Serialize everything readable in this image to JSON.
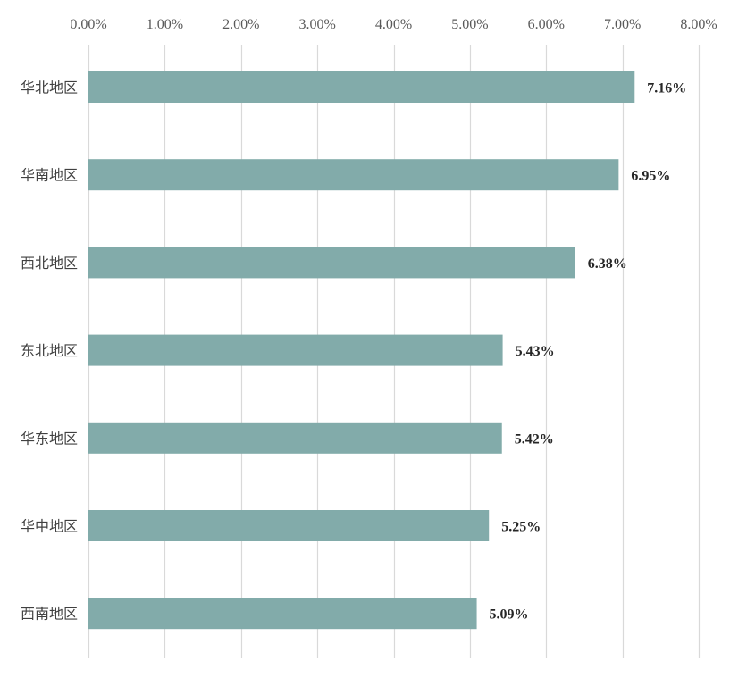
{
  "chart_data": {
    "type": "bar",
    "orientation": "horizontal",
    "title": "",
    "xlabel": "",
    "ylabel": "",
    "categories": [
      "华北地区",
      "华南地区",
      "西北地区",
      "东北地区",
      "华东地区",
      "华中地区",
      "西南地区"
    ],
    "values": [
      7.16,
      6.95,
      6.38,
      5.43,
      5.42,
      5.25,
      5.09
    ],
    "value_labels": [
      "7.16%",
      "6.95%",
      "6.38%",
      "5.43%",
      "5.42%",
      "5.25%",
      "5.09%"
    ],
    "xlim": [
      0,
      8
    ],
    "ticks": [
      0,
      1,
      2,
      3,
      4,
      5,
      6,
      7,
      8
    ],
    "tick_labels": [
      "0.00%",
      "1.00%",
      "2.00%",
      "3.00%",
      "4.00%",
      "5.00%",
      "6.00%",
      "7.00%",
      "8.00%"
    ],
    "axis_position": "top",
    "grid": true,
    "legend": "none",
    "bar_color": "#82ABAA",
    "grid_color": "#D9D9D9"
  }
}
